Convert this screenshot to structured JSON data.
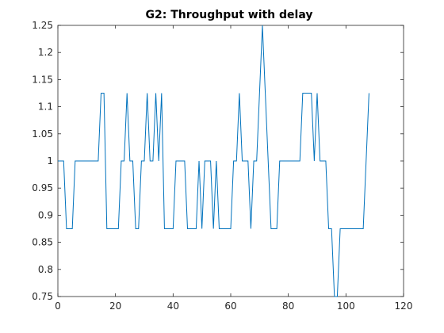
{
  "chart_data": {
    "type": "line",
    "title": "G2: Throughput with delay",
    "xlabel": "",
    "ylabel": "",
    "xlim": [
      0,
      120
    ],
    "ylim": [
      0.75,
      1.25
    ],
    "x_ticks": [
      "0",
      "20",
      "40",
      "60",
      "80",
      "100",
      "120"
    ],
    "y_ticks": [
      "0.75",
      "0.8",
      "0.85",
      "0.9",
      "0.95",
      "1",
      "1.05",
      "1.1",
      "1.15",
      "1.2",
      "1.25"
    ],
    "grid": false,
    "series": [
      {
        "color": "#0072BD",
        "x": [
          0,
          1,
          2,
          3,
          4,
          5,
          6,
          7,
          8,
          9,
          10,
          11,
          12,
          13,
          14,
          15,
          16,
          17,
          18,
          19,
          20,
          21,
          22,
          23,
          24,
          25,
          26,
          27,
          28,
          29,
          30,
          31,
          32,
          33,
          34,
          35,
          36,
          37,
          38,
          39,
          40,
          41,
          42,
          43,
          44,
          45,
          46,
          47,
          48,
          49,
          50,
          51,
          52,
          53,
          54,
          55,
          56,
          57,
          58,
          59,
          60,
          61,
          62,
          63,
          64,
          65,
          66,
          67,
          68,
          69,
          70,
          71,
          72,
          73,
          74,
          75,
          76,
          77,
          78,
          79,
          80,
          81,
          82,
          83,
          84,
          85,
          86,
          87,
          88,
          89,
          90,
          91,
          92,
          93,
          94,
          95,
          96,
          97,
          98,
          99,
          100,
          101,
          102,
          103,
          104,
          105,
          106,
          107,
          108
        ],
        "y": [
          1,
          1,
          1,
          0.875,
          0.875,
          0.875,
          1,
          1,
          1,
          1,
          1,
          1,
          1,
          1,
          1,
          1.125,
          1.125,
          0.875,
          0.875,
          0.875,
          0.875,
          0.875,
          1,
          1,
          1.125,
          1,
          1,
          0.875,
          0.875,
          1,
          1,
          1.125,
          1,
          1,
          1.125,
          1,
          1.125,
          0.875,
          0.875,
          0.875,
          0.875,
          1,
          1,
          1,
          1,
          0.875,
          0.875,
          0.875,
          0.875,
          1,
          0.875,
          1,
          1,
          1,
          0.875,
          1,
          0.875,
          0.875,
          0.875,
          0.875,
          0.875,
          1,
          1,
          1.125,
          1,
          1,
          1,
          0.875,
          1,
          1,
          1.125,
          1.25,
          1.125,
          1,
          0.875,
          0.875,
          0.875,
          1,
          1,
          1,
          1,
          1,
          1,
          1,
          1,
          1.125,
          1.125,
          1.125,
          1.125,
          1,
          1.125,
          1,
          1,
          1,
          0.875,
          0.875,
          0.75,
          0.75,
          0.875,
          0.875,
          0.875,
          0.875,
          0.875,
          0.875,
          0.875,
          0.875,
          0.875,
          1,
          1.125
        ]
      }
    ]
  }
}
